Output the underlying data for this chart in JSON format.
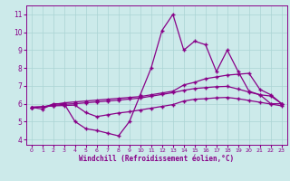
{
  "x": [
    0,
    1,
    2,
    3,
    4,
    5,
    6,
    7,
    8,
    9,
    10,
    11,
    12,
    13,
    14,
    15,
    16,
    17,
    18,
    19,
    20,
    21,
    22,
    23
  ],
  "y_jagged": [
    5.8,
    5.7,
    6.0,
    6.0,
    5.0,
    4.6,
    4.5,
    4.35,
    4.2,
    5.0,
    6.5,
    8.0,
    10.1,
    11.0,
    9.0,
    9.5,
    9.3,
    7.8,
    9.0,
    7.8,
    6.7,
    6.5,
    6.0,
    6.0
  ],
  "y_upper": [
    5.8,
    5.82,
    5.95,
    6.05,
    6.1,
    6.15,
    6.2,
    6.25,
    6.3,
    6.35,
    6.4,
    6.5,
    6.6,
    6.7,
    7.05,
    7.2,
    7.4,
    7.5,
    7.6,
    7.65,
    7.7,
    6.8,
    6.5,
    6.0
  ],
  "y_mid": [
    5.8,
    5.82,
    5.9,
    5.97,
    6.0,
    6.05,
    6.1,
    6.15,
    6.2,
    6.26,
    6.32,
    6.42,
    6.52,
    6.62,
    6.75,
    6.85,
    6.9,
    6.95,
    6.97,
    6.82,
    6.65,
    6.5,
    6.43,
    6.0
  ],
  "y_lower": [
    5.8,
    5.82,
    5.88,
    5.9,
    5.92,
    5.5,
    5.28,
    5.38,
    5.48,
    5.55,
    5.65,
    5.75,
    5.85,
    5.95,
    6.15,
    6.25,
    6.28,
    6.33,
    6.35,
    6.28,
    6.18,
    6.08,
    5.98,
    5.88
  ],
  "ylim": [
    3.7,
    11.5
  ],
  "xlim": [
    -0.5,
    23.5
  ],
  "yticks": [
    4,
    5,
    6,
    7,
    8,
    9,
    10,
    11
  ],
  "xticks": [
    0,
    1,
    2,
    3,
    4,
    5,
    6,
    7,
    8,
    9,
    10,
    11,
    12,
    13,
    14,
    15,
    16,
    17,
    18,
    19,
    20,
    21,
    22,
    23
  ],
  "xlabel": "Windchill (Refroidissement éolien,°C)",
  "bg_color": "#cceaea",
  "grid_color": "#aad4d4",
  "line_color": "#880088",
  "fig_bg": "#cceaea"
}
